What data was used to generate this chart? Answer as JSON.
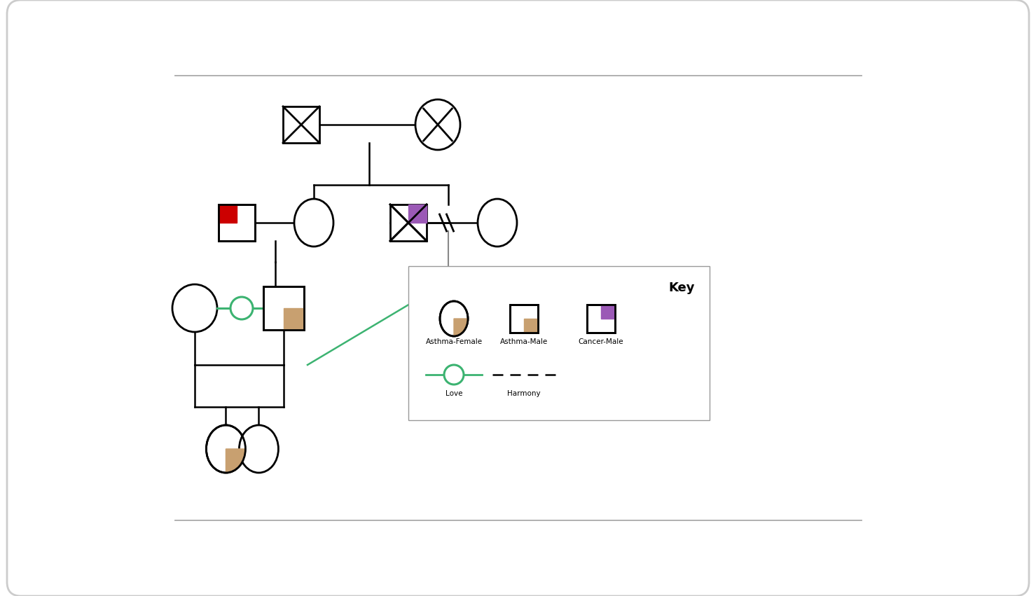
{
  "bg_color": "#ffffff",
  "green_line": "#3cb371",
  "gray_line": "#888888",
  "red_fill": "#cc0000",
  "purple_fill": "#9b59b6",
  "tan_fill": "#c8a070",
  "key_labels": [
    "Asthma-Female",
    "Asthma-Male",
    "Cancer-Male"
  ],
  "key_label_love": "Love",
  "key_label_harmony": "Harmony",
  "key_title": "Key",
  "outer_border_color": "#bbbbbb",
  "sep_line_color": "#aaaaaa",
  "key_border_color": "#999999"
}
